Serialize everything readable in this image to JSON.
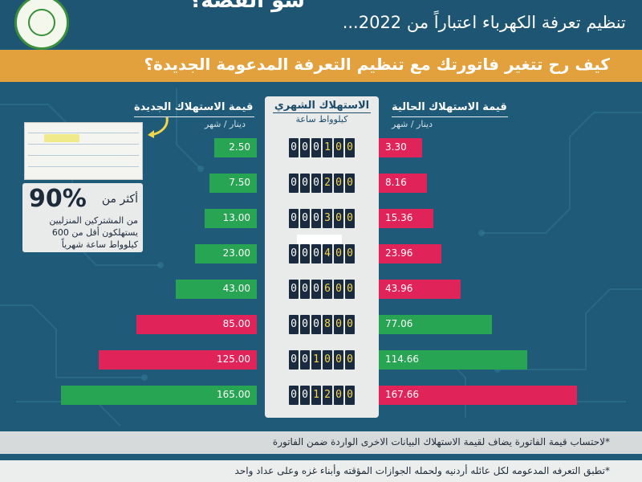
{
  "header": {
    "kicker": "شو القصة؟",
    "subtitle": "تنظيم تعرفة الكهرباء اعتباراً من 2022..."
  },
  "question": "كيف رح تتغير فاتورتك مع تنظيم التعرفة المدعومة الجديدة؟",
  "columns": {
    "new_title": "قيمة الاستهلاك الجديدة",
    "new_unit": "دينار / شهر",
    "center_title": "الاستهلاك الشهري",
    "center_unit": "كيلوواط ساعة",
    "current_title": "قيمة الاستهلاك الحالية",
    "current_unit": "دينار / شهر"
  },
  "note": {
    "percent": "90%",
    "line1": "أكثر من",
    "line2": "من المشتركين المنزليين",
    "line3": "يستهلكون أقل من 600",
    "line4": "كيلوواط ساعة شهرياً"
  },
  "footer": {
    "line1": "*لاحتساب قيمة الفاتورة يضاف لقيمة الاستهلاك البيانات الاخرى الواردة ضمن الفاتورة",
    "line2": "*تطبق التعرفه المدعومه لكل عائله أردنيه ولحمله الجوازات المؤقته وأبناء غزه وعلى عداد واحد"
  },
  "colors": {
    "green": "#27a552",
    "red": "#e0245a",
    "orange": "#e2a13c",
    "background": "#1f5a78"
  },
  "chart_data": {
    "type": "bar",
    "categories": [
      "100",
      "200",
      "300",
      "400",
      "600",
      "800",
      "1000",
      "1200"
    ],
    "meter_digits": [
      [
        "0",
        "0",
        "0",
        "1",
        "0",
        "0"
      ],
      [
        "0",
        "0",
        "0",
        "2",
        "0",
        "0"
      ],
      [
        "0",
        "0",
        "0",
        "3",
        "0",
        "0"
      ],
      [
        "0",
        "0",
        "0",
        "4",
        "0",
        "0"
      ],
      [
        "0",
        "0",
        "0",
        "6",
        "0",
        "0"
      ],
      [
        "0",
        "0",
        "0",
        "8",
        "0",
        "0"
      ],
      [
        "0",
        "0",
        "1",
        "0",
        "0",
        "0"
      ],
      [
        "0",
        "0",
        "1",
        "2",
        "0",
        "0"
      ]
    ],
    "series": [
      {
        "name": "قيمة الاستهلاك الجديدة",
        "values": [
          2.5,
          7.5,
          13.0,
          23.0,
          43.0,
          85.0,
          125.0,
          165.0
        ],
        "labels": [
          "2.50",
          "7.50",
          "13.00",
          "23.00",
          "43.00",
          "85.00",
          "125.00",
          "165.00"
        ],
        "colors": [
          "green",
          "green",
          "green",
          "green",
          "green",
          "red",
          "red",
          "green"
        ]
      },
      {
        "name": "قيمة الاستهلاك الحالية",
        "values": [
          3.3,
          8.16,
          15.36,
          23.96,
          43.96,
          77.06,
          114.66,
          167.66
        ],
        "labels": [
          "3.30",
          "8.16",
          "15.36",
          "23.96",
          "43.96",
          "77.06",
          "114.66",
          "167.66"
        ],
        "colors": [
          "red",
          "red",
          "red",
          "red",
          "red",
          "green",
          "green",
          "red"
        ]
      }
    ]
  }
}
